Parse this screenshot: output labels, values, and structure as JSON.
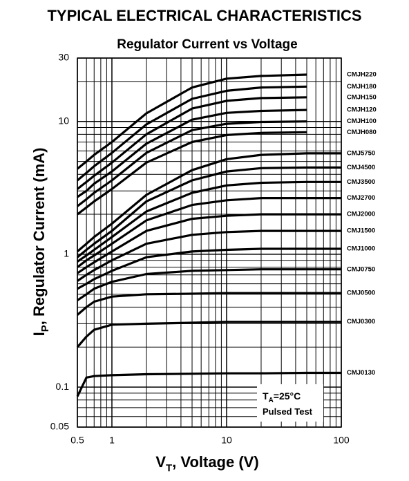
{
  "chart_data": {
    "type": "line",
    "suptitle": "TYPICAL ELECTRICAL CHARACTERISTICS",
    "title": "Regulator Current vs Voltage",
    "xlabel": {
      "main": "V",
      "sub": "T",
      "rest": ", Voltage (V)"
    },
    "ylabel": {
      "main": "I",
      "sub": "P",
      "rest": ", Regulator Current (mA)"
    },
    "annotation": {
      "main": "T",
      "sub": "A",
      "rest": "=25°C",
      "line2": "Pulsed Test"
    },
    "log_x": true,
    "log_y": true,
    "grid": true,
    "color": "#000000",
    "xlim": [
      0.5,
      100
    ],
    "ylim": [
      0.05,
      30
    ],
    "xticks": [
      0.5,
      1,
      10,
      100
    ],
    "yticks": [
      0.05,
      0.1,
      1,
      10,
      30
    ],
    "x_minor_ticks": [
      0.6,
      0.7,
      0.8,
      0.9,
      2,
      3,
      4,
      5,
      6,
      7,
      8,
      9,
      20,
      30,
      40,
      50,
      60,
      70,
      80,
      90
    ],
    "y_minor_ticks": [
      0.06,
      0.07,
      0.08,
      0.09,
      0.2,
      0.3,
      0.4,
      0.5,
      0.6,
      0.7,
      0.8,
      0.9,
      2,
      3,
      4,
      5,
      6,
      7,
      8,
      9,
      20
    ],
    "x": [
      0.5,
      0.6,
      0.7,
      1,
      2,
      5,
      10,
      20,
      50,
      100
    ],
    "series": [
      {
        "name": "CMJH220",
        "values": [
          4.4,
          5.0,
          5.6,
          7.0,
          11.5,
          18,
          21,
          22,
          22.5,
          null
        ]
      },
      {
        "name": "CMJH180",
        "values": [
          3.6,
          4.1,
          4.6,
          5.8,
          9.5,
          14.8,
          17,
          18,
          18.3,
          null
        ]
      },
      {
        "name": "CMJH150",
        "values": [
          3.1,
          3.5,
          3.9,
          4.9,
          8,
          12.5,
          14.3,
          15,
          15.2,
          null
        ]
      },
      {
        "name": "CMJH120",
        "values": [
          2.7,
          3.0,
          3.4,
          4.2,
          6.8,
          10.3,
          11.6,
          12,
          12.2,
          null
        ]
      },
      {
        "name": "CMJH100",
        "values": [
          2.3,
          2.6,
          2.9,
          3.6,
          5.8,
          8.6,
          9.6,
          9.9,
          10,
          null
        ]
      },
      {
        "name": "CMJH080",
        "values": [
          2.0,
          2.25,
          2.5,
          3.1,
          4.9,
          7.0,
          7.9,
          8.2,
          8.3,
          null
        ]
      },
      {
        "name": "CMJ5750",
        "values": [
          1.05,
          1.2,
          1.35,
          1.7,
          2.8,
          4.3,
          5.2,
          5.6,
          5.75,
          5.75
        ]
      },
      {
        "name": "CMJ4500",
        "values": [
          0.95,
          1.08,
          1.2,
          1.5,
          2.5,
          3.6,
          4.2,
          4.45,
          4.5,
          4.5
        ]
      },
      {
        "name": "CMJ3500",
        "values": [
          0.88,
          0.98,
          1.08,
          1.35,
          2.1,
          2.9,
          3.3,
          3.45,
          3.5,
          3.5
        ]
      },
      {
        "name": "CMJ2700",
        "values": [
          0.8,
          0.9,
          0.98,
          1.2,
          1.8,
          2.35,
          2.55,
          2.65,
          2.65,
          2.65
        ]
      },
      {
        "name": "CMJ2000",
        "values": [
          0.72,
          0.8,
          0.87,
          1.05,
          1.5,
          1.85,
          1.95,
          2.0,
          2.0,
          2.0
        ]
      },
      {
        "name": "CMJ1500",
        "values": [
          0.63,
          0.7,
          0.76,
          0.9,
          1.2,
          1.4,
          1.47,
          1.5,
          1.5,
          1.5
        ]
      },
      {
        "name": "CMJ1000",
        "values": [
          0.55,
          0.6,
          0.65,
          0.75,
          0.95,
          1.05,
          1.08,
          1.1,
          1.1,
          1.1
        ]
      },
      {
        "name": "CMJ0750",
        "values": [
          0.45,
          0.5,
          0.55,
          0.62,
          0.71,
          0.75,
          0.76,
          0.77,
          0.77,
          0.77
        ]
      },
      {
        "name": "CMJ0500",
        "values": [
          0.35,
          0.4,
          0.44,
          0.48,
          0.5,
          0.505,
          0.51,
          0.51,
          0.51,
          0.51
        ]
      },
      {
        "name": "CMJ0300",
        "values": [
          0.2,
          0.24,
          0.27,
          0.295,
          0.3,
          0.305,
          0.31,
          0.31,
          0.31,
          0.31
        ]
      },
      {
        "name": "CMJ0130",
        "values": [
          0.085,
          0.118,
          0.121,
          0.123,
          0.125,
          0.126,
          0.127,
          0.127,
          0.128,
          0.128
        ]
      }
    ]
  }
}
